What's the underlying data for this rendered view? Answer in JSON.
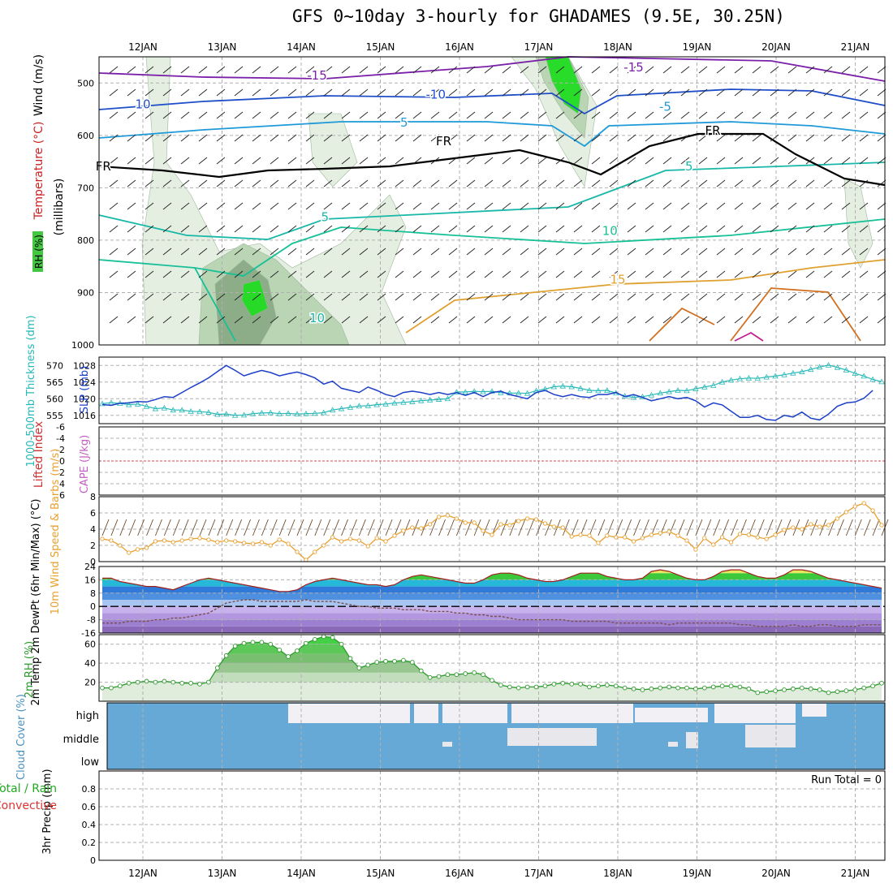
{
  "title": "GFS 0~10day 3-hourly for GHADAMES (9.5E, 30.25N)",
  "colors": {
    "rh_light": "#e3efe0",
    "rh_mid": "#b8d4b2",
    "rh_dark": "#8aab86",
    "rh_green": "#22dd22",
    "slp": "#1c3fc8",
    "thickness": "#28b8b8",
    "lifted_zero": "#dd4444",
    "wind_speed": "#e8a030",
    "barb": "#6b4a2a",
    "rh2m": "#2d9a2d",
    "cloud": "#67a9d6",
    "cloud_clear": "#f2f0f5",
    "frz": "#000000"
  },
  "chart_data": [
    {
      "type": "heatmap",
      "name": "upper-air",
      "x": [
        "12JAN",
        "13JAN",
        "14JAN",
        "15JAN",
        "16JAN",
        "17JAN",
        "18JAN",
        "19JAN",
        "20JAN",
        "21JAN"
      ],
      "ylabel_wind": "Wind (m/s)",
      "ylabel_temp": "Temperature (°C)",
      "ylabel_rh": "RH (%)",
      "ylabel_pressure": "(millibars)",
      "y_ticks": [
        500,
        600,
        700,
        800,
        900,
        1000
      ],
      "ylim": [
        450,
        1000
      ],
      "isotherm_labels": [
        {
          "text": "-15",
          "day": 2.2,
          "p": 493,
          "color": "#7a1fa8"
        },
        {
          "text": "-15",
          "day": 6.2,
          "p": 478,
          "color": "#7a1fa8"
        },
        {
          "text": "10",
          "day": 0.0,
          "p": 548,
          "color": "#1f4fc8"
        },
        {
          "text": "-10",
          "day": 3.7,
          "p": 530,
          "color": "#1f4fc8"
        },
        {
          "text": "-5",
          "day": 6.6,
          "p": 553,
          "color": "#1f9ad8"
        },
        {
          "text": "5",
          "day": 3.3,
          "p": 583,
          "color": "#1f9ad8"
        },
        {
          "text": "5",
          "day": 6.9,
          "p": 667,
          "color": "#17b8a8"
        },
        {
          "text": "5",
          "day": 2.3,
          "p": 764,
          "color": "#17b8a8"
        },
        {
          "text": "10",
          "day": 5.9,
          "p": 790,
          "color": "#17c098"
        },
        {
          "text": "15",
          "day": 6.0,
          "p": 883,
          "color": "#e0a030"
        },
        {
          "text": "10",
          "day": 2.2,
          "p": 957,
          "color": "#17b8a8"
        },
        {
          "text": "FR",
          "day": -0.5,
          "p": 667,
          "color": "#000000"
        },
        {
          "text": "FR",
          "day": 3.8,
          "p": 619,
          "color": "#000000"
        },
        {
          "text": "FR",
          "day": 7.2,
          "p": 599,
          "color": "#000000"
        }
      ]
    },
    {
      "type": "line",
      "name": "slp-thickness",
      "ylabel_left": "1000-500mb Thickness (dm)",
      "ylabel_right": "SLP (mb)",
      "y_left_ticks": [
        555,
        560,
        565,
        570
      ],
      "y_right_ticks": [
        1016,
        1020,
        1024,
        1028
      ],
      "ylim_slp": [
        1014,
        1030
      ],
      "series": [
        {
          "name": "SLP (mb)",
          "values": [
            1018.6,
            1018.4,
            1018.9,
            1019.0,
            1019.3,
            1019.2,
            1019.8,
            1020.5,
            1020.3,
            1021.5,
            1022.7,
            1023.8,
            1025.0,
            1026.5,
            1028.0,
            1026.8,
            1025.5,
            1026.2,
            1026.8,
            1026.3,
            1025.5,
            1026.0,
            1026.4,
            1025.8,
            1025.0,
            1023.5,
            1024.2,
            1022.5,
            1022.0,
            1021.5,
            1022.8,
            1022.0,
            1021.0,
            1020.5,
            1021.5,
            1021.8,
            1021.5,
            1021.0,
            1021.5,
            1021.0,
            1021.5,
            1020.8,
            1021.5,
            1020.5,
            1021.5,
            1021.8,
            1021.0,
            1020.5,
            1020.0,
            1021.5,
            1022.0,
            1021.0,
            1020.5,
            1021.0,
            1020.5,
            1020.3,
            1021.0,
            1021.0,
            1021.5,
            1020.5,
            1021.0,
            1020.3,
            1019.5,
            1020.0,
            1020.5,
            1020.0,
            1020.3,
            1019.5,
            1018.0,
            1019.0,
            1018.5,
            1017.0,
            1015.5,
            1015.5,
            1016.0,
            1015.0,
            1014.8,
            1016.0,
            1015.6,
            1016.8,
            1015.3,
            1014.9,
            1016.3,
            1018.2,
            1019.0,
            1019.2,
            1020.1,
            1022.0
          ]
        },
        {
          "name": "Thickness (dm)",
          "values": [
            558.5,
            558.8,
            558.6,
            558.2,
            558.4,
            557.7,
            557.0,
            557.2,
            556.6,
            556.6,
            556.2,
            556.1,
            555.9,
            555.3,
            555.4,
            555.0,
            555.1,
            555.5,
            555.7,
            555.8,
            555.5,
            555.6,
            555.4,
            555.5,
            555.6,
            555.8,
            556.6,
            557.0,
            557.4,
            557.8,
            557.9,
            558.2,
            558.4,
            558.7,
            558.9,
            559.1,
            559.4,
            559.6,
            559.8,
            560.0,
            562.0,
            562.0,
            562.2,
            562.1,
            562.2,
            561.8,
            561.7,
            561.7,
            561.6,
            562.4,
            562.9,
            563.6,
            563.8,
            563.6,
            563.1,
            562.5,
            562.4,
            562.5,
            561.7,
            560.8,
            560.4,
            560.6,
            561.1,
            561.7,
            562.1,
            562.5,
            562.4,
            563.0,
            563.5,
            564.0,
            565.0,
            565.6,
            566.0,
            566.2,
            566.1,
            566.5,
            566.8,
            567.2,
            567.7,
            568.1,
            568.8,
            569.5,
            570.1,
            569.4,
            568.6,
            567.6,
            566.8,
            565.8,
            565.1
          ]
        }
      ]
    },
    {
      "type": "line",
      "name": "lifted-cape",
      "ylabel_left": "Lifted Index",
      "ylabel_right": "CAPE (J/kg)",
      "y_ticks": [
        -6,
        -4,
        -2,
        0,
        2,
        4,
        6
      ],
      "y_tick_labels": [
        "-6",
        "-4",
        "-2",
        "0",
        "2",
        "4",
        "6"
      ],
      "ylim": [
        -6,
        6
      ]
    },
    {
      "type": "line",
      "name": "wind10m",
      "ylabel": "10m Wind Speed & Barbs (m/s)",
      "y_ticks": [
        0,
        2,
        4,
        6,
        8
      ],
      "ylim": [
        0,
        8
      ],
      "values": [
        2.8,
        2.6,
        2.0,
        1.1,
        1.5,
        1.7,
        2.5,
        2.6,
        2.4,
        2.6,
        2.8,
        2.9,
        2.7,
        2.4,
        2.6,
        2.5,
        2.3,
        2.2,
        2.4,
        2.0,
        2.7,
        2.2,
        1.2,
        0.2,
        1.2,
        2.0,
        3.0,
        2.5,
        2.8,
        2.6,
        1.9,
        2.9,
        2.5,
        3.2,
        3.8,
        4.2,
        4.1,
        4.6,
        5.5,
        5.7,
        5.3,
        4.8,
        4.8,
        3.8,
        3.3,
        4.6,
        4.5,
        5.0,
        5.3,
        5.2,
        4.7,
        4.3,
        4.2,
        3.1,
        3.3,
        3.2,
        2.3,
        3.2,
        3.0,
        3.0,
        2.5,
        2.9,
        3.3,
        3.5,
        3.7,
        3.2,
        2.6,
        1.5,
        2.9,
        2.1,
        3.0,
        2.4,
        3.4,
        3.3,
        3.0,
        2.8,
        3.3,
        3.9,
        4.2,
        4.0,
        4.6,
        4.3,
        4.5,
        5.3,
        6.1,
        6.8,
        7.2,
        6.3,
        4.5
      ]
    },
    {
      "type": "area",
      "name": "temp2m",
      "ylabel": "2m Temp 2m DewPt (6hr Min/Max) (°C)",
      "y_ticks": [
        -16,
        -8,
        0,
        8,
        16,
        24
      ],
      "ylim": [
        -16,
        24
      ],
      "series": [
        {
          "name": "Temp",
          "values": [
            17,
            17,
            15,
            14,
            13,
            12,
            12,
            11,
            10,
            12,
            14,
            16,
            17,
            16,
            15,
            14,
            13,
            12,
            11,
            10,
            9,
            9,
            10,
            13,
            15,
            16,
            17,
            16,
            15,
            14,
            13,
            13,
            12,
            13,
            16,
            18,
            19,
            18,
            17,
            16,
            15,
            14,
            14,
            16,
            19,
            20,
            20,
            19,
            17,
            16,
            15,
            15,
            16,
            18,
            20,
            20,
            20,
            18,
            17,
            16,
            16,
            17,
            21,
            22,
            21,
            19,
            17,
            16,
            16,
            18,
            21,
            22,
            22,
            20,
            18,
            17,
            17,
            19,
            22,
            22,
            21,
            19,
            17,
            16,
            15,
            14,
            13,
            12,
            11
          ]
        },
        {
          "name": "DewPt",
          "values": [
            -10,
            -10,
            -10,
            -9,
            -9,
            -9,
            -8,
            -8,
            -7,
            -7,
            -6,
            -5,
            -4,
            -1,
            2,
            3,
            4,
            4,
            3,
            3,
            3,
            3,
            3,
            4,
            3,
            3,
            3,
            2,
            1,
            0,
            0,
            -1,
            -1,
            -1,
            -2,
            -2,
            -2,
            -3,
            -3,
            -3,
            -4,
            -4,
            -5,
            -5,
            -6,
            -6,
            -7,
            -8,
            -8,
            -8,
            -8,
            -8,
            -8,
            -9,
            -9,
            -9,
            -9,
            -9,
            -10,
            -10,
            -10,
            -10,
            -10,
            -10,
            -11,
            -10,
            -10,
            -10,
            -10,
            -10,
            -10,
            -10,
            -11,
            -11,
            -12,
            -12,
            -12,
            -12,
            -11,
            -12,
            -12,
            -11,
            -11,
            -12,
            -12,
            -12,
            -11,
            -11,
            -11
          ]
        }
      ]
    },
    {
      "type": "area",
      "name": "rh2m",
      "ylabel": "2m RH (%)",
      "y_ticks": [
        20,
        40,
        60
      ],
      "ylim": [
        0,
        70
      ],
      "values": [
        14,
        14,
        16,
        19,
        20,
        21,
        20,
        21,
        20,
        19,
        19,
        18,
        20,
        35,
        48,
        58,
        61,
        62,
        62,
        60,
        54,
        47,
        53,
        61,
        65,
        68,
        67,
        60,
        45,
        35,
        38,
        41,
        42,
        42,
        43,
        41,
        32,
        25,
        26,
        28,
        28,
        29,
        30,
        28,
        22,
        17,
        15,
        14,
        15,
        15,
        16,
        18,
        19,
        18,
        18,
        15,
        16,
        17,
        16,
        14,
        13,
        12,
        13,
        14,
        15,
        14,
        14,
        13,
        14,
        15,
        16,
        16,
        15,
        13,
        9,
        10,
        11,
        12,
        13,
        14,
        13,
        12,
        9,
        10,
        11,
        12,
        14,
        16,
        19
      ]
    },
    {
      "type": "heatmap",
      "name": "cloud-cover",
      "ylabel": "Cloud Cover (%)",
      "levels": [
        "high",
        "middle",
        "low"
      ]
    },
    {
      "type": "bar",
      "name": "precip",
      "ylabel": "3hr Precip (mm)",
      "ylabel_total": "Total / Rain",
      "ylabel_convective": "Convective",
      "annotation": "Run Total = 0",
      "y_ticks": [
        0,
        0.2,
        0.4,
        0.6,
        0.8
      ],
      "ylim": [
        0,
        1
      ],
      "x": [
        "12JAN",
        "13JAN",
        "14JAN",
        "15JAN",
        "16JAN",
        "17JAN",
        "18JAN",
        "19JAN",
        "20JAN",
        "21JAN"
      ]
    }
  ]
}
